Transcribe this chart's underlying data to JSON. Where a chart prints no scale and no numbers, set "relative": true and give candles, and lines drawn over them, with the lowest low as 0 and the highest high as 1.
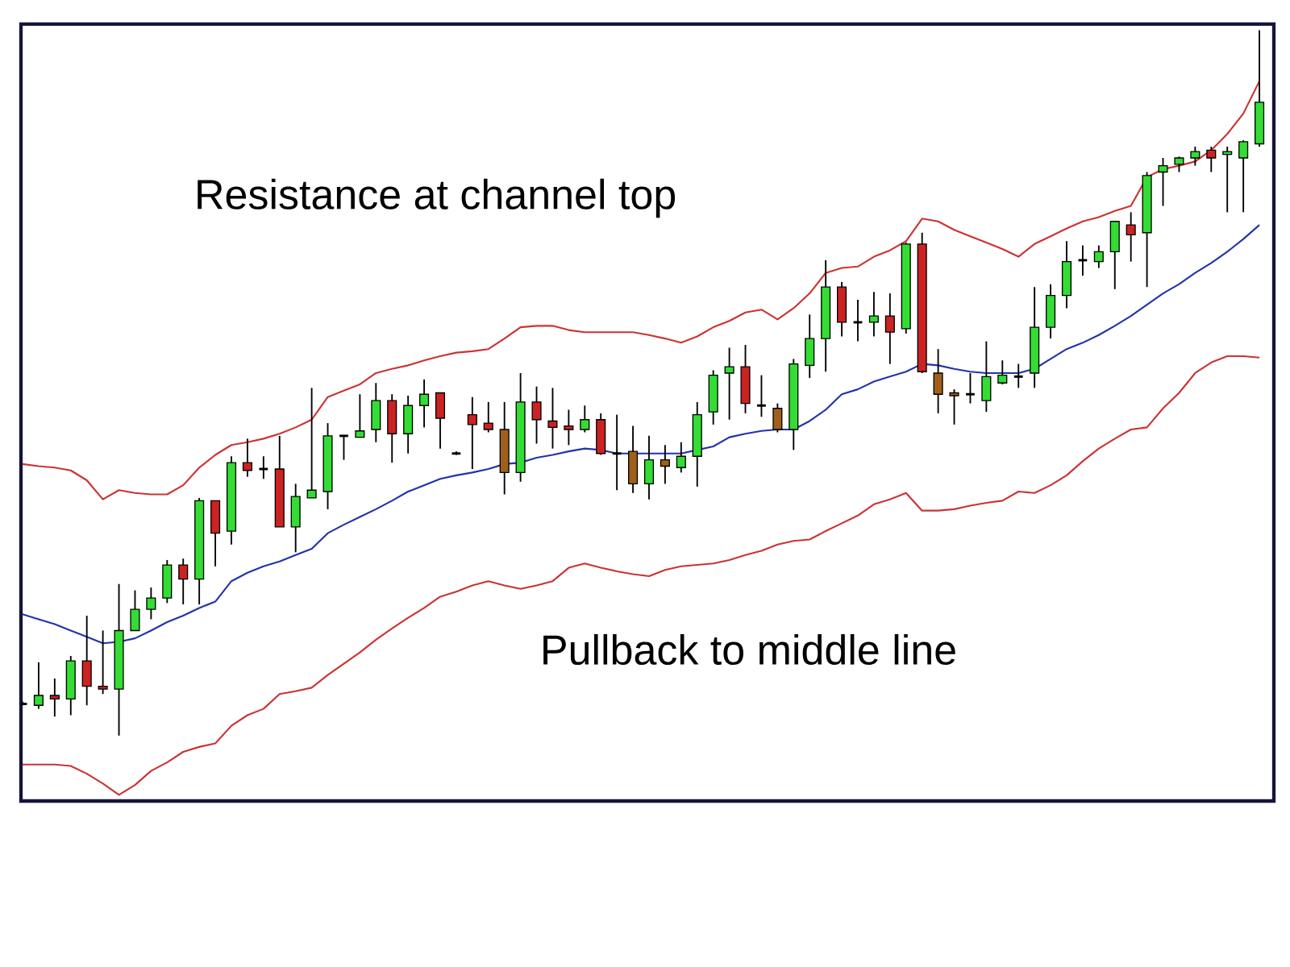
{
  "chart_data": {
    "type": "candlestick",
    "relative": true,
    "annotations": [
      "Resistance at channel top",
      "Pullback to middle line"
    ],
    "categories": [
      null,
      null,
      null,
      null,
      null,
      null,
      null,
      null,
      null,
      null,
      null,
      null,
      null,
      null,
      null,
      null,
      null,
      null,
      null,
      null,
      null,
      null,
      null,
      null,
      null,
      null,
      null,
      null,
      null,
      null,
      null,
      null,
      null,
      null,
      null,
      null,
      null,
      null,
      null,
      null,
      null,
      null,
      null,
      null,
      null,
      null,
      null,
      null,
      null,
      null,
      null,
      null,
      null,
      null,
      null,
      null,
      null,
      null,
      null,
      null,
      null,
      null,
      null,
      null,
      null,
      null,
      null,
      null,
      null,
      null,
      null,
      null,
      null,
      null,
      null,
      null,
      null,
      null
    ],
    "ohlc": [
      [
        0.045,
        0.048,
        0.043,
        0.045
      ],
      [
        0.043,
        0.104,
        0.038,
        0.057
      ],
      [
        0.057,
        0.081,
        0.027,
        0.052
      ],
      [
        0.052,
        0.113,
        0.029,
        0.106
      ],
      [
        0.106,
        0.17,
        0.043,
        0.07
      ],
      [
        0.07,
        0.149,
        0.059,
        0.066
      ],
      [
        0.066,
        0.215,
        0,
        0.149
      ],
      [
        0.149,
        0.206,
        0.149,
        0.179
      ],
      [
        0.179,
        0.21,
        0.165,
        0.195
      ],
      [
        0.195,
        0.249,
        0.188,
        0.242
      ],
      [
        0.242,
        0.251,
        0.186,
        0.222
      ],
      [
        0.222,
        0.337,
        0.186,
        0.333
      ],
      [
        0.333,
        0.333,
        0.24,
        0.287
      ],
      [
        0.29,
        0.396,
        0.271,
        0.387
      ],
      [
        0.387,
        0.421,
        0.367,
        0.376
      ],
      [
        0.378,
        0.396,
        0.364,
        0.378
      ],
      [
        0.378,
        0.425,
        0.296,
        0.296
      ],
      [
        0.296,
        0.357,
        0.26,
        0.339
      ],
      [
        0.337,
        0.493,
        0.337,
        0.348
      ],
      [
        0.346,
        0.443,
        0.321,
        0.425
      ],
      [
        0.425,
        0.425,
        0.391,
        0.425
      ],
      [
        0.423,
        0.484,
        0.423,
        0.432
      ],
      [
        0.434,
        0.5,
        0.416,
        0.475
      ],
      [
        0.475,
        0.484,
        0.387,
        0.428
      ],
      [
        0.428,
        0.482,
        0.4,
        0.468
      ],
      [
        0.468,
        0.505,
        0.437,
        0.484
      ],
      [
        0.486,
        0.486,
        0.407,
        0.45
      ],
      [
        0.4,
        0.403,
        0.398,
        0.4
      ],
      [
        0.455,
        0.48,
        0.378,
        0.441
      ],
      [
        0.443,
        0.473,
        0.43,
        0.434
      ],
      [
        0.434,
        0.473,
        0.342,
        0.373
      ],
      [
        0.373,
        0.514,
        0.36,
        0.473
      ],
      [
        0.473,
        0.495,
        0.414,
        0.448
      ],
      [
        0.446,
        0.493,
        0.407,
        0.437
      ],
      [
        0.439,
        0.462,
        0.412,
        0.434
      ],
      [
        0.434,
        0.468,
        0.43,
        0.448
      ],
      [
        0.448,
        0.457,
        0.398,
        0.4
      ],
      [
        0.4,
        0.455,
        0.348,
        0.4
      ],
      [
        0.403,
        0.439,
        0.344,
        0.357
      ],
      [
        0.357,
        0.425,
        0.335,
        0.391
      ],
      [
        0.391,
        0.412,
        0.357,
        0.382
      ],
      [
        0.38,
        0.416,
        0.373,
        0.396
      ],
      [
        0.396,
        0.473,
        0.353,
        0.455
      ],
      [
        0.459,
        0.518,
        0.441,
        0.511
      ],
      [
        0.514,
        0.55,
        0.448,
        0.523
      ],
      [
        0.523,
        0.554,
        0.457,
        0.471
      ],
      [
        0.468,
        0.511,
        0.452,
        0.468
      ],
      [
        0.464,
        0.471,
        0.43,
        0.434
      ],
      [
        0.434,
        0.534,
        0.405,
        0.527
      ],
      [
        0.525,
        0.597,
        0.507,
        0.563
      ],
      [
        0.563,
        0.674,
        0.516,
        0.636
      ],
      [
        0.636,
        0.643,
        0.566,
        0.586
      ],
      [
        0.586,
        0.618,
        0.559,
        0.586
      ],
      [
        0.586,
        0.629,
        0.566,
        0.595
      ],
      [
        0.595,
        0.627,
        0.527,
        0.572
      ],
      [
        0.577,
        0.699,
        0.57,
        0.697
      ],
      [
        0.697,
        0.713,
        0.514,
        0.516
      ],
      [
        0.514,
        0.548,
        0.457,
        0.484
      ],
      [
        0.486,
        0.491,
        0.441,
        0.482
      ],
      [
        0.484,
        0.514,
        0.471,
        0.484
      ],
      [
        0.475,
        0.559,
        0.459,
        0.509
      ],
      [
        0.5,
        0.532,
        0.498,
        0.511
      ],
      [
        0.509,
        0.527,
        0.493,
        0.509
      ],
      [
        0.514,
        0.636,
        0.493,
        0.579
      ],
      [
        0.579,
        0.64,
        0.563,
        0.624
      ],
      [
        0.624,
        0.701,
        0.606,
        0.672
      ],
      [
        0.674,
        0.695,
        0.652,
        0.674
      ],
      [
        0.672,
        0.695,
        0.663,
        0.686
      ],
      [
        0.686,
        0.729,
        0.633,
        0.729
      ],
      [
        0.724,
        0.742,
        0.672,
        0.71
      ],
      [
        0.713,
        0.799,
        0.636,
        0.794
      ],
      [
        0.799,
        0.819,
        0.751,
        0.808
      ],
      [
        0.81,
        0.821,
        0.799,
        0.819
      ],
      [
        0.819,
        0.835,
        0.808,
        0.828
      ],
      [
        0.83,
        0.835,
        0.799,
        0.819
      ],
      [
        0.824,
        0.835,
        0.742,
        0.828
      ],
      [
        0.819,
        0.844,
        0.742,
        0.842
      ],
      [
        0.839,
        1,
        0.835,
        0.898
      ]
    ],
    "colors": [
      "#000000",
      "#33dd33",
      "#cc2222",
      "#33dd33",
      "#cc2222",
      "#cc2222",
      "#33dd33",
      "#33dd33",
      "#33dd33",
      "#33dd33",
      "#cc2222",
      "#33dd33",
      "#cc2222",
      "#33dd33",
      "#cc2222",
      "#000000",
      "#cc2222",
      "#33dd33",
      "#33dd33",
      "#33dd33",
      "#000000",
      "#33dd33",
      "#33dd33",
      "#cc2222",
      "#33dd33",
      "#33dd33",
      "#cc2222",
      "#000000",
      "#cc2222",
      "#cc2222",
      "#a0601a",
      "#33dd33",
      "#cc2222",
      "#cc2222",
      "#cc2222",
      "#33dd33",
      "#cc2222",
      "#000000",
      "#a0601a",
      "#33dd33",
      "#a0601a",
      "#33dd33",
      "#33dd33",
      "#33dd33",
      "#33dd33",
      "#cc2222",
      "#000000",
      "#a0601a",
      "#33dd33",
      "#33dd33",
      "#33dd33",
      "#cc2222",
      "#000000",
      "#33dd33",
      "#cc2222",
      "#33dd33",
      "#cc2222",
      "#a0601a",
      "#a0601a",
      "#000000",
      "#33dd33",
      "#33dd33",
      "#000000",
      "#33dd33",
      "#33dd33",
      "#33dd33",
      "#000000",
      "#33dd33",
      "#33dd33",
      "#cc2222",
      "#33dd33",
      "#33dd33",
      "#33dd33",
      "#33dd33",
      "#cc2222",
      "#33dd33",
      "#33dd33",
      "#33dd33"
    ],
    "series": [
      {
        "type": "line",
        "color": "#cc3333",
        "values": [
          0.385,
          0.382,
          0.38,
          0.376,
          0.362,
          0.335,
          0.348,
          0.344,
          0.342,
          0.342,
          0.355,
          0.38,
          0.398,
          0.412,
          0.416,
          0.421,
          0.428,
          0.437,
          0.448,
          0.48,
          0.489,
          0.498,
          0.514,
          0.52,
          0.525,
          0.532,
          0.538,
          0.543,
          0.545,
          0.548,
          0.563,
          0.579,
          0.581,
          0.581,
          0.575,
          0.572,
          0.572,
          0.572,
          0.572,
          0.568,
          0.563,
          0.557,
          0.566,
          0.579,
          0.588,
          0.6,
          0.604,
          0.59,
          0.606,
          0.627,
          0.656,
          0.663,
          0.665,
          0.679,
          0.688,
          0.701,
          0.733,
          0.729,
          0.717,
          0.708,
          0.699,
          0.69,
          0.679,
          0.697,
          0.708,
          0.719,
          0.729,
          0.735,
          0.744,
          0.751,
          0.792,
          0.803,
          0.808,
          0.814,
          0.83,
          0.853,
          0.882,
          0.928
        ]
      },
      {
        "type": "line",
        "color": "#2233aa",
        "values": [
          0.172,
          0.165,
          0.158,
          0.149,
          0.14,
          0.131,
          0.133,
          0.138,
          0.149,
          0.161,
          0.17,
          0.181,
          0.19,
          0.219,
          0.231,
          0.24,
          0.247,
          0.256,
          0.265,
          0.287,
          0.299,
          0.31,
          0.321,
          0.333,
          0.346,
          0.355,
          0.364,
          0.369,
          0.373,
          0.378,
          0.385,
          0.387,
          0.394,
          0.398,
          0.403,
          0.407,
          0.405,
          0.4,
          0.4,
          0.4,
          0.4,
          0.4,
          0.405,
          0.41,
          0.423,
          0.428,
          0.432,
          0.434,
          0.434,
          0.446,
          0.462,
          0.484,
          0.491,
          0.502,
          0.509,
          0.516,
          0.527,
          0.525,
          0.52,
          0.516,
          0.514,
          0.514,
          0.514,
          0.52,
          0.534,
          0.548,
          0.557,
          0.568,
          0.581,
          0.595,
          0.611,
          0.627,
          0.64,
          0.656,
          0.67,
          0.686,
          0.704,
          0.724
        ]
      },
      {
        "type": "line",
        "color": "#cc3333",
        "values": [
          -0.041,
          -0.041,
          -0.041,
          -0.043,
          -0.054,
          -0.068,
          -0.084,
          -0.07,
          -0.05,
          -0.038,
          -0.023,
          -0.016,
          -0.011,
          0.014,
          0.029,
          0.038,
          0.059,
          0.063,
          0.068,
          0.086,
          0.102,
          0.118,
          0.136,
          0.152,
          0.167,
          0.181,
          0.197,
          0.204,
          0.213,
          0.219,
          0.213,
          0.208,
          0.213,
          0.219,
          0.238,
          0.244,
          0.238,
          0.233,
          0.229,
          0.226,
          0.235,
          0.24,
          0.242,
          0.244,
          0.249,
          0.256,
          0.262,
          0.271,
          0.276,
          0.278,
          0.29,
          0.301,
          0.312,
          0.328,
          0.335,
          0.344,
          0.319,
          0.319,
          0.321,
          0.326,
          0.33,
          0.333,
          0.346,
          0.344,
          0.355,
          0.369,
          0.389,
          0.407,
          0.421,
          0.434,
          0.437,
          0.464,
          0.486,
          0.514,
          0.529,
          0.538,
          0.538,
          0.536
        ]
      }
    ]
  }
}
